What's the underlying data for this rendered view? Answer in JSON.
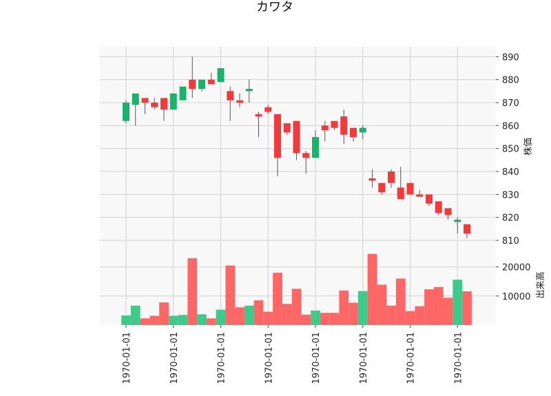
{
  "chart_data": {
    "type": "candlestick",
    "title": "カワタ",
    "ylabel_price": "株価",
    "ylabel_volume": "出来高",
    "grid": true,
    "colors": {
      "up": "#19b36b",
      "down": "#f23a3a",
      "volume_up": "#3fc98a",
      "volume_down": "#ff6666",
      "grid": "#d0d0d0",
      "panel": "#f8f8f8",
      "wick": "#555555"
    },
    "price_ylim": [
      807,
      893
    ],
    "price_ticks": [
      810,
      820,
      830,
      840,
      850,
      860,
      870,
      880,
      890
    ],
    "volume_ylim": [
      0,
      25000
    ],
    "volume_ticks": [
      10000,
      20000
    ],
    "volume_tick_labels": [
      "10000",
      "20000"
    ],
    "x_tick_positions": [
      0,
      5,
      10,
      15,
      20,
      25,
      30,
      35
    ],
    "x_tick_labels": [
      "1970-01-01",
      "1970-01-01",
      "1970-01-01",
      "1970-01-01",
      "1970-01-01",
      "1970-01-01",
      "1970-01-01",
      "1970-01-01"
    ],
    "candles": [
      {
        "open": 862,
        "high": 871,
        "low": 861,
        "close": 870,
        "volume": 3300
      },
      {
        "open": 869,
        "high": 874,
        "low": 860,
        "close": 874,
        "volume": 6700
      },
      {
        "open": 872,
        "high": 872,
        "low": 865,
        "close": 870,
        "volume": 2300
      },
      {
        "open": 870,
        "high": 872,
        "low": 867,
        "close": 868,
        "volume": 3200
      },
      {
        "open": 872,
        "high": 872,
        "low": 862,
        "close": 867,
        "volume": 7800
      },
      {
        "open": 867,
        "high": 874,
        "low": 867,
        "close": 874,
        "volume": 3200
      },
      {
        "open": 871,
        "high": 877,
        "low": 871,
        "close": 877,
        "volume": 3500
      },
      {
        "open": 880,
        "high": 890,
        "low": 872,
        "close": 876,
        "volume": 23000
      },
      {
        "open": 876,
        "high": 880,
        "low": 875,
        "close": 880,
        "volume": 3700
      },
      {
        "open": 880,
        "high": 883,
        "low": 878,
        "close": 878,
        "volume": 2300
      },
      {
        "open": 879,
        "high": 885,
        "low": 879,
        "close": 885,
        "volume": 5300
      },
      {
        "open": 875,
        "high": 877,
        "low": 862,
        "close": 871,
        "volume": 20500
      },
      {
        "open": 871,
        "high": 874,
        "low": 868,
        "close": 870,
        "volume": 6100
      },
      {
        "open": 875,
        "high": 880,
        "low": 870,
        "close": 876,
        "volume": 6700
      },
      {
        "open": 865,
        "high": 866,
        "low": 855,
        "close": 864,
        "volume": 8500
      },
      {
        "open": 868,
        "high": 869,
        "low": 865,
        "close": 866,
        "volume": 4600
      },
      {
        "open": 865,
        "high": 865,
        "low": 838,
        "close": 846,
        "volume": 18000
      },
      {
        "open": 861,
        "high": 861,
        "low": 856,
        "close": 857,
        "volume": 7300
      },
      {
        "open": 862,
        "high": 862,
        "low": 845,
        "close": 848,
        "volume": 12500
      },
      {
        "open": 848,
        "high": 849,
        "low": 839,
        "close": 846,
        "volume": 3600
      },
      {
        "open": 846,
        "high": 858,
        "low": 846,
        "close": 855,
        "volume": 5000
      },
      {
        "open": 860,
        "high": 862,
        "low": 853,
        "close": 858,
        "volume": 4200
      },
      {
        "open": 862,
        "high": 862,
        "low": 858,
        "close": 859,
        "volume": 4200
      },
      {
        "open": 864,
        "high": 867,
        "low": 852,
        "close": 856,
        "volume": 11900
      },
      {
        "open": 859,
        "high": 859,
        "low": 853,
        "close": 855,
        "volume": 7700
      },
      {
        "open": 857,
        "high": 860,
        "low": 854,
        "close": 859,
        "volume": 11700
      },
      {
        "open": 837,
        "high": 841,
        "low": 833,
        "close": 836,
        "volume": 24500
      },
      {
        "open": 835,
        "high": 835,
        "low": 830,
        "close": 831,
        "volume": 13900
      },
      {
        "open": 840,
        "high": 841,
        "low": 833,
        "close": 835,
        "volume": 6700
      },
      {
        "open": 833,
        "high": 842,
        "low": 828,
        "close": 828,
        "volume": 16000
      },
      {
        "open": 835,
        "high": 835,
        "low": 830,
        "close": 830,
        "volume": 4800
      },
      {
        "open": 830,
        "high": 832,
        "low": 829,
        "close": 829,
        "volume": 6500
      },
      {
        "open": 830,
        "high": 830,
        "low": 825,
        "close": 826,
        "volume": 12300
      },
      {
        "open": 827,
        "high": 827,
        "low": 821,
        "close": 822,
        "volume": 13100
      },
      {
        "open": 824,
        "high": 824,
        "low": 819,
        "close": 821,
        "volume": 9400
      },
      {
        "open": 818,
        "high": 820,
        "low": 813,
        "close": 819,
        "volume": 15600
      },
      {
        "open": 817,
        "high": 817,
        "low": 811,
        "close": 813,
        "volume": 11600
      }
    ]
  }
}
